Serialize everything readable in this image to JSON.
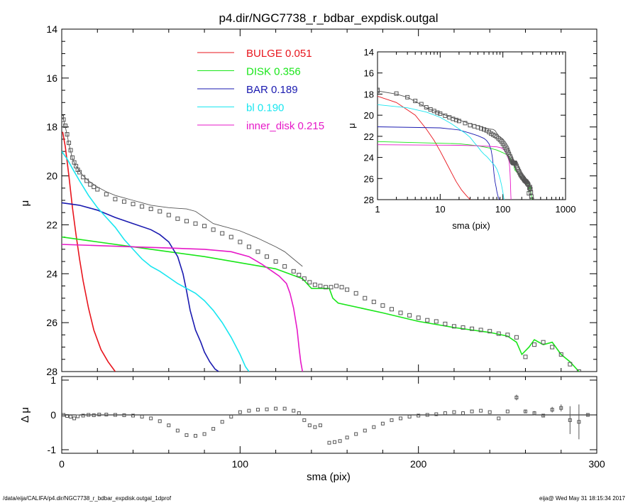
{
  "footer": {
    "path": "/data/eija/CALIFA/p4.dir/NGC7738_r_bdbar_expdisk.outgal_1dprof",
    "stamp": "eija@  Wed May 31 18:15:34 2017"
  },
  "chart_data": [
    {
      "type": "line",
      "title": "p4.dir/NGC7738_r_bdbar_expdisk.outgal",
      "xlabel": "",
      "ylabel": "μ",
      "xlim": [
        0,
        300
      ],
      "ylim": [
        28,
        14
      ],
      "yticks": [
        "14",
        "16",
        "18",
        "20",
        "22",
        "24",
        "26",
        "28"
      ],
      "xticks": [],
      "legend_position": "top-center",
      "legend": [
        {
          "name": "BULGE",
          "value": "0.051",
          "color": "#e8141c"
        },
        {
          "name": "DISK",
          "value": "0.356",
          "color": "#19e619"
        },
        {
          "name": "BAR",
          "value": "0.189",
          "color": "#1a1ab0"
        },
        {
          "name": "bl",
          "value": "0.190",
          "color": "#19e6f0"
        },
        {
          "name": "inner_disk",
          "value": "0.215",
          "color": "#e619c8"
        }
      ],
      "series": [
        {
          "name": "BULGE",
          "color": "#e8141c",
          "x": [
            0.5,
            2,
            4,
            6,
            8,
            10,
            12,
            15,
            18,
            22,
            26,
            30
          ],
          "y": [
            18.2,
            18.8,
            20.0,
            21.3,
            22.4,
            23.4,
            24.3,
            25.4,
            26.3,
            27.1,
            27.6,
            28.0
          ]
        },
        {
          "name": "DISK",
          "color": "#19e619",
          "x": [
            0,
            20,
            40,
            60,
            80,
            100,
            120,
            135,
            140,
            150,
            152,
            155,
            180,
            200,
            220,
            240,
            250,
            255,
            258,
            262,
            265,
            270,
            275,
            280,
            285,
            290
          ],
          "y": [
            22.5,
            22.7,
            22.9,
            23.1,
            23.3,
            23.55,
            23.8,
            24.2,
            24.6,
            24.6,
            25.0,
            25.2,
            25.6,
            25.95,
            26.2,
            26.4,
            26.55,
            26.8,
            27.3,
            27.0,
            26.7,
            26.9,
            26.8,
            27.3,
            27.6,
            28.0
          ]
        },
        {
          "name": "BAR",
          "color": "#1a1ab0",
          "x": [
            0,
            10,
            20,
            30,
            40,
            50,
            55,
            60,
            65,
            68,
            70,
            72,
            75,
            78,
            80,
            83,
            86,
            88
          ],
          "y": [
            21.1,
            21.2,
            21.4,
            21.7,
            21.95,
            22.2,
            22.4,
            22.7,
            23.3,
            24.0,
            24.7,
            25.5,
            26.3,
            26.8,
            27.2,
            27.6,
            27.9,
            28.0
          ]
        },
        {
          "name": "bl",
          "color": "#19e6f0",
          "x": [
            0,
            3,
            6,
            10,
            15,
            20,
            25,
            30,
            35,
            40,
            45,
            50,
            55,
            60,
            65,
            70,
            75,
            80,
            85,
            90,
            95,
            100,
            103,
            105
          ],
          "y": [
            19.0,
            19.3,
            19.7,
            20.2,
            20.8,
            21.3,
            21.7,
            22.1,
            22.6,
            23.0,
            23.4,
            23.7,
            23.9,
            24.15,
            24.4,
            24.6,
            24.8,
            25.1,
            25.5,
            26.0,
            26.6,
            27.3,
            27.8,
            28.0
          ]
        },
        {
          "name": "inner_disk",
          "color": "#e619c8",
          "x": [
            0,
            20,
            40,
            60,
            80,
            95,
            105,
            112,
            118,
            122,
            126,
            128,
            130,
            132,
            133,
            134,
            135
          ],
          "y": [
            22.8,
            22.85,
            22.9,
            22.95,
            23.0,
            23.1,
            23.3,
            23.6,
            23.9,
            24.1,
            24.4,
            24.8,
            25.4,
            26.3,
            27.0,
            27.6,
            28.0
          ]
        },
        {
          "name": "model",
          "color": "#555555",
          "x": [
            0,
            1,
            2,
            3,
            4,
            5,
            6,
            8,
            10,
            12,
            15,
            20,
            25,
            30,
            35,
            40,
            45,
            50,
            60,
            70,
            75,
            80,
            85,
            90,
            100,
            110,
            120,
            125,
            130,
            135
          ],
          "y": [
            17.6,
            17.7,
            18.0,
            18.3,
            18.7,
            19.0,
            19.3,
            19.6,
            19.8,
            20.0,
            20.2,
            20.45,
            20.65,
            20.8,
            20.9,
            21.0,
            21.1,
            21.2,
            21.3,
            21.35,
            21.45,
            21.7,
            21.95,
            22.05,
            22.25,
            22.55,
            22.9,
            23.1,
            23.4,
            23.7
          ]
        },
        {
          "name": "data",
          "color": "#555555",
          "x": [
            0,
            1,
            2,
            3,
            4,
            5,
            6,
            7,
            8,
            9,
            10,
            12,
            14,
            16,
            18,
            20,
            25,
            30,
            35,
            40,
            45,
            50,
            55,
            60,
            65,
            70,
            75,
            80,
            85,
            90,
            95,
            100,
            105,
            110,
            115,
            120,
            125,
            130,
            133,
            136,
            139,
            142,
            145,
            148,
            151,
            154,
            157,
            160,
            165,
            170,
            175,
            180,
            185,
            190,
            195,
            200,
            205,
            210,
            215,
            220,
            225,
            230,
            235,
            240,
            245,
            250,
            255,
            260,
            265,
            270,
            275,
            280,
            285,
            290
          ],
          "y": [
            17.6,
            17.7,
            17.95,
            18.3,
            18.65,
            18.95,
            19.25,
            19.45,
            19.6,
            19.75,
            19.85,
            20.05,
            20.2,
            20.35,
            20.45,
            20.55,
            20.75,
            20.95,
            21.05,
            21.15,
            21.25,
            21.35,
            21.45,
            21.6,
            21.75,
            21.85,
            21.95,
            22.05,
            22.2,
            22.35,
            22.5,
            22.7,
            22.9,
            23.1,
            23.3,
            23.5,
            23.7,
            23.9,
            24.05,
            24.2,
            24.35,
            24.45,
            24.5,
            24.55,
            24.55,
            24.5,
            24.55,
            24.65,
            24.8,
            25.0,
            25.15,
            25.3,
            25.45,
            25.6,
            25.7,
            25.8,
            25.9,
            25.95,
            26.05,
            26.15,
            26.2,
            26.25,
            26.3,
            26.35,
            26.45,
            26.5,
            26.6,
            27.4,
            26.9,
            26.8,
            27.0,
            27.3,
            27.7,
            28.0
          ]
        }
      ]
    },
    {
      "type": "line",
      "title": "",
      "xlabel": "sma (pix)",
      "ylabel": "μ",
      "xscale": "log",
      "xlim": [
        1,
        1000
      ],
      "ylim": [
        28,
        14
      ],
      "xticks": [
        "1",
        "10",
        "100",
        "1000"
      ],
      "yticks": [
        "14",
        "16",
        "18",
        "20",
        "22",
        "24",
        "26",
        "28"
      ]
    },
    {
      "type": "scatter",
      "title": "",
      "xlabel": "sma (pix)",
      "ylabel": "Δ μ",
      "xlim": [
        0,
        300
      ],
      "ylim": [
        -1.1,
        1.1
      ],
      "xticks": [
        "0",
        "100",
        "200",
        "300"
      ],
      "yticks": [
        "1",
        "0",
        "-1"
      ],
      "x": [
        1,
        3,
        5,
        7,
        9,
        12,
        15,
        18,
        21,
        25,
        30,
        35,
        40,
        45,
        50,
        55,
        60,
        65,
        70,
        75,
        80,
        85,
        90,
        95,
        100,
        105,
        110,
        115,
        120,
        125,
        130,
        133,
        136,
        139,
        142,
        145,
        150,
        153,
        156,
        160,
        165,
        170,
        175,
        180,
        185,
        190,
        195,
        200,
        205,
        210,
        215,
        220,
        225,
        230,
        235,
        240,
        245,
        250,
        255,
        260,
        265,
        270,
        275,
        280,
        285,
        290,
        295
      ],
      "y": [
        0.0,
        -0.03,
        -0.05,
        -0.1,
        -0.04,
        -0.02,
        0.0,
        -0.01,
        0.01,
        0.01,
        0.0,
        -0.01,
        -0.02,
        -0.05,
        -0.1,
        -0.18,
        -0.3,
        -0.45,
        -0.58,
        -0.6,
        -0.55,
        -0.4,
        -0.2,
        -0.05,
        0.08,
        0.12,
        0.15,
        0.16,
        0.18,
        0.18,
        0.12,
        0.05,
        -0.15,
        -0.3,
        -0.35,
        -0.3,
        -0.8,
        -0.78,
        -0.75,
        -0.65,
        -0.55,
        -0.45,
        -0.35,
        -0.25,
        -0.15,
        -0.1,
        -0.05,
        -0.02,
        0.0,
        0.02,
        0.05,
        0.08,
        0.05,
        0.1,
        0.12,
        0.08,
        -0.1,
        0.1,
        0.5,
        0.1,
        0.05,
        -0.02,
        0.15,
        0.2,
        -0.15,
        -0.2,
        0.0
      ],
      "err": [
        0,
        0,
        0,
        0,
        0,
        0,
        0,
        0,
        0,
        0,
        0,
        0,
        0,
        0,
        0,
        0,
        0,
        0,
        0,
        0,
        0,
        0,
        0,
        0,
        0,
        0,
        0,
        0,
        0,
        0,
        0,
        0,
        0,
        0,
        0,
        0,
        0,
        0,
        0,
        0,
        0,
        0,
        0,
        0,
        0,
        0,
        0,
        0,
        0,
        0,
        0,
        0,
        0,
        0,
        0,
        0,
        0,
        0,
        0.08,
        0.05,
        0.06,
        0.04,
        0.08,
        0.1,
        0.4,
        0.5,
        0.05
      ]
    }
  ]
}
